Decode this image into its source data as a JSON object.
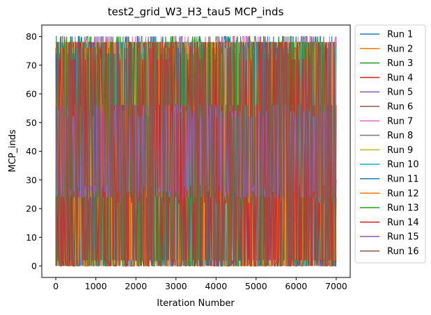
{
  "chart_data": {
    "type": "line",
    "title": "test2_grid_W3_H3_tau5 MCP_inds",
    "xlabel": "Iteration Number",
    "ylabel": "MCP_inds",
    "xlim": [
      -350,
      7350
    ],
    "ylim": [
      -4,
      84
    ],
    "xticks": [
      0,
      1000,
      2000,
      3000,
      4000,
      5000,
      6000,
      7000
    ],
    "yticks": [
      0,
      10,
      20,
      30,
      40,
      50,
      60,
      70,
      80
    ],
    "grid": false,
    "legend_position": "outside-right",
    "x_range": [
      0,
      7000
    ],
    "series": [
      {
        "name": "Run 1",
        "color": "#1f77b4",
        "levels": [
          2,
          8,
          78,
          80,
          56,
          24
        ]
      },
      {
        "name": "Run 2",
        "color": "#ff7f0e",
        "levels": [
          0,
          2,
          78,
          76,
          56,
          24
        ]
      },
      {
        "name": "Run 3",
        "color": "#2ca02c",
        "levels": [
          2,
          80,
          78,
          74,
          24,
          56
        ]
      },
      {
        "name": "Run 4",
        "color": "#d62728",
        "levels": [
          0,
          2,
          72,
          78,
          22,
          56
        ]
      },
      {
        "name": "Run 5",
        "color": "#9467bd",
        "levels": [
          24,
          56,
          26,
          54,
          30,
          50
        ]
      },
      {
        "name": "Run 6",
        "color": "#8c564b",
        "levels": [
          2,
          78,
          24,
          56,
          0,
          76
        ]
      },
      {
        "name": "Run 7",
        "color": "#e377c2",
        "levels": [
          78,
          80,
          24,
          56,
          2,
          0
        ]
      },
      {
        "name": "Run 8",
        "color": "#7f7f7f",
        "levels": [
          0,
          78,
          2,
          56,
          24,
          76
        ]
      },
      {
        "name": "Run 9",
        "color": "#bcbd22",
        "levels": [
          0,
          78,
          2,
          56,
          24,
          76
        ]
      },
      {
        "name": "Run 10",
        "color": "#17becf",
        "levels": [
          0,
          78,
          2,
          56,
          24,
          76
        ]
      },
      {
        "name": "Run 11",
        "color": "#1f77b4",
        "levels": [
          2,
          78,
          24,
          56,
          0,
          74
        ]
      },
      {
        "name": "Run 12",
        "color": "#ff7f0e",
        "levels": [
          0,
          78,
          2,
          56,
          24,
          76
        ]
      },
      {
        "name": "Run 13",
        "color": "#2ca02c",
        "levels": [
          2,
          78,
          0,
          56,
          24,
          74
        ]
      },
      {
        "name": "Run 14",
        "color": "#d62728",
        "levels": [
          0,
          2,
          78,
          56,
          22,
          72,
          24
        ]
      },
      {
        "name": "Run 15",
        "color": "#9467bd",
        "levels": [
          24,
          56,
          26,
          54,
          28,
          52
        ]
      },
      {
        "name": "Run 16",
        "color": "#8c564b",
        "levels": [
          2,
          76,
          24,
          56,
          0,
          78
        ]
      }
    ]
  }
}
